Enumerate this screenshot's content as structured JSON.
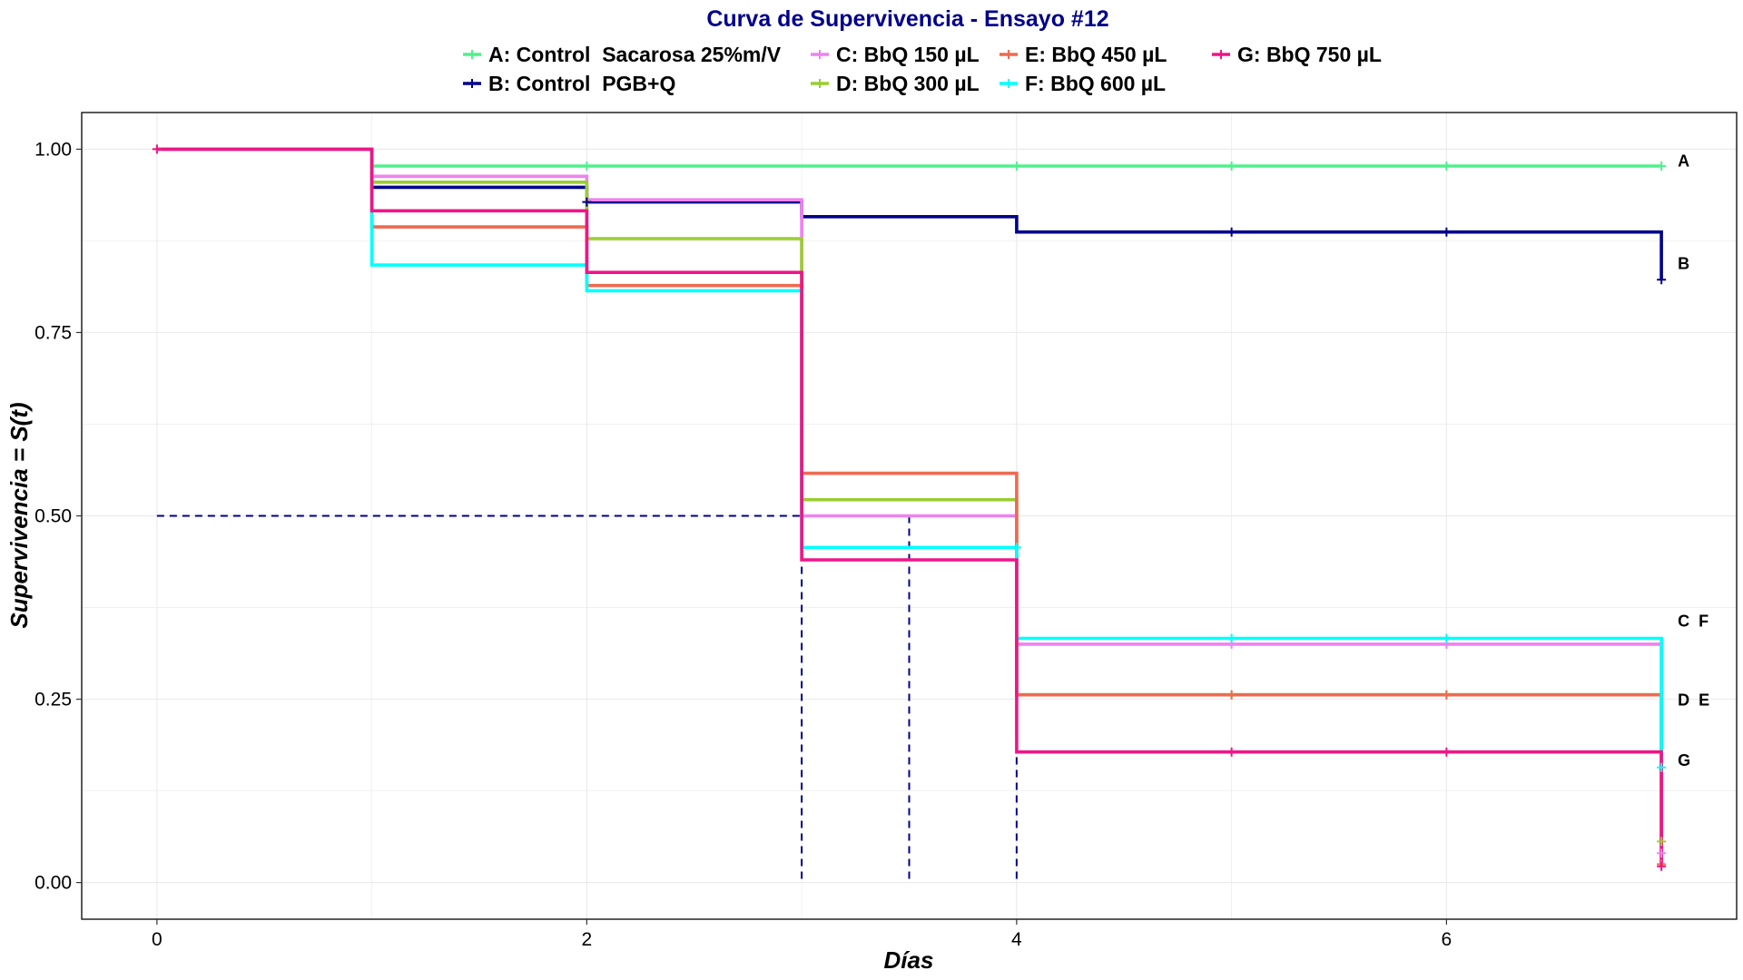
{
  "chart_data": {
    "type": "line",
    "subtype": "kaplan-meier step survival curve",
    "title": "Curva de Supervivencia - Ensayo #12",
    "title_color": "#00008B",
    "xlabel": "Días",
    "ylabel": "Supervivencia = S(t)",
    "xlim": [
      -0.35,
      7.35
    ],
    "ylim": [
      -0.05,
      1.05
    ],
    "x_ticks": [
      0,
      2,
      4,
      6
    ],
    "x_tick_labels": [
      "0",
      "2",
      "4",
      "6"
    ],
    "y_ticks": [
      0,
      0.25,
      0.5,
      0.75,
      1
    ],
    "y_tick_labels": [
      "0.00",
      "0.25",
      "0.50",
      "0.75",
      "1.00"
    ],
    "grid": true,
    "legend_position": "top",
    "series": [
      {
        "name": "A: Control  Sacarosa 25%m/V",
        "short": "A",
        "color": "#50F08C",
        "steps": [
          [
            0,
            1.0
          ],
          [
            1,
            0.977
          ],
          [
            7,
            0.977
          ]
        ],
        "censor_marks": [
          [
            0,
            1.0
          ],
          [
            2,
            0.977
          ],
          [
            4,
            0.977
          ],
          [
            5,
            0.977
          ],
          [
            6,
            0.977
          ],
          [
            7,
            0.977
          ]
        ]
      },
      {
        "name": "B: Control  PGB+Q",
        "short": "B",
        "color": "#00008B",
        "steps": [
          [
            0,
            1.0
          ],
          [
            1,
            0.948
          ],
          [
            2,
            0.928
          ],
          [
            3,
            0.908
          ],
          [
            4,
            0.887
          ],
          [
            7,
            0.887
          ],
          [
            7,
            0.822
          ]
        ],
        "censor_marks": [
          [
            2,
            0.928
          ],
          [
            5,
            0.887
          ],
          [
            6,
            0.887
          ],
          [
            7,
            0.822
          ]
        ]
      },
      {
        "name": "C: BbQ 150 µL",
        "short": "C",
        "color": "#EE82EE",
        "steps": [
          [
            0,
            1.0
          ],
          [
            1,
            0.963
          ],
          [
            2,
            0.931
          ],
          [
            3,
            0.5
          ],
          [
            4,
            0.325
          ],
          [
            7,
            0.325
          ],
          [
            7,
            0.04
          ]
        ],
        "censor_marks": [
          [
            5,
            0.325
          ],
          [
            6,
            0.325
          ],
          [
            7,
            0.04
          ]
        ]
      },
      {
        "name": "D: BbQ 300 µL",
        "short": "D",
        "color": "#9ACD32",
        "steps": [
          [
            0,
            1.0
          ],
          [
            1,
            0.955
          ],
          [
            2,
            0.878
          ],
          [
            3,
            0.522
          ],
          [
            4,
            0.256
          ],
          [
            7,
            0.256
          ],
          [
            7,
            0.056
          ]
        ],
        "censor_marks": [
          [
            5,
            0.256
          ],
          [
            6,
            0.256
          ],
          [
            7,
            0.056
          ]
        ]
      },
      {
        "name": "E: BbQ 450 µL",
        "short": "E",
        "color": "#EE6A50",
        "steps": [
          [
            0,
            1.0
          ],
          [
            1,
            0.894
          ],
          [
            2,
            0.814
          ],
          [
            3,
            0.558
          ],
          [
            4,
            0.256
          ],
          [
            7,
            0.256
          ],
          [
            7,
            0.025
          ]
        ],
        "censor_marks": [
          [
            5,
            0.256
          ],
          [
            6,
            0.256
          ],
          [
            7,
            0.025
          ]
        ]
      },
      {
        "name": "F: BbQ 600 µL",
        "short": "F",
        "color": "#00FFFF",
        "steps": [
          [
            0,
            1.0
          ],
          [
            1,
            0.842
          ],
          [
            2,
            0.807
          ],
          [
            3,
            0.457
          ],
          [
            4,
            0.333
          ],
          [
            7,
            0.333
          ],
          [
            7,
            0.157
          ]
        ],
        "censor_marks": [
          [
            4,
            0.457
          ],
          [
            5,
            0.333
          ],
          [
            6,
            0.333
          ],
          [
            7,
            0.157
          ]
        ]
      },
      {
        "name": "G: BbQ 750 µL",
        "short": "G",
        "color": "#F01488",
        "steps": [
          [
            0,
            1.0
          ],
          [
            1,
            0.916
          ],
          [
            2,
            0.832
          ],
          [
            3,
            0.44
          ],
          [
            4,
            0.178
          ],
          [
            7,
            0.178
          ],
          [
            7,
            0.022
          ]
        ],
        "censor_marks": [
          [
            0,
            1.0
          ],
          [
            5,
            0.178
          ],
          [
            6,
            0.178
          ],
          [
            7,
            0.022
          ]
        ]
      }
    ],
    "median_guides": {
      "color": "#00008B",
      "y": 0.5,
      "x_values": [
        3,
        3.5,
        4
      ]
    },
    "end_labels": [
      {
        "text": "A",
        "y": 0.985
      },
      {
        "text": "B",
        "y": 0.845
      },
      {
        "text": "C  F",
        "y": 0.358
      },
      {
        "text": "D  E",
        "y": 0.25
      },
      {
        "text": "G",
        "y": 0.168
      }
    ]
  }
}
